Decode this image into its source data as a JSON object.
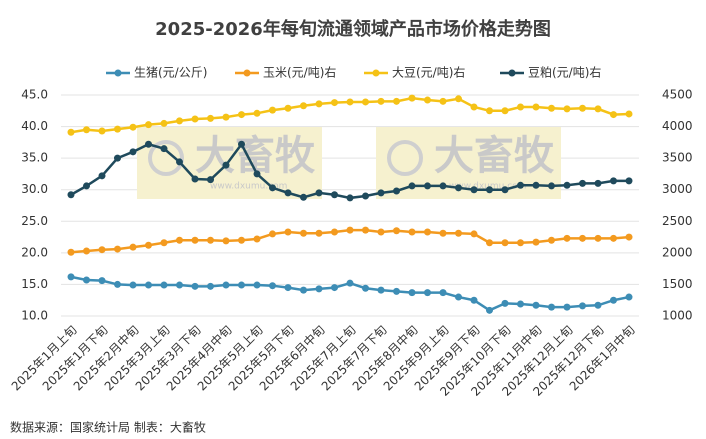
{
  "chart_data": {
    "type": "line",
    "title": "2025-2026年每旬流通领域产品市场价格走势图",
    "source": "数据来源：国家统计局  制表：大畜牧",
    "watermark": "大畜牧",
    "watermark_url": "www.dxumu.com",
    "categories": [
      "2025年1月上旬",
      null,
      "2025年1月下旬",
      null,
      "2025年2月中旬",
      null,
      "2025年3月上旬",
      null,
      "2025年3月下旬",
      null,
      "2025年4月中旬",
      null,
      "2025年5月上旬",
      null,
      "2025年5月下旬",
      null,
      "2025年6月中旬",
      null,
      "2025年7月上旬",
      null,
      "2025年7月下旬",
      null,
      "2025年8月中旬",
      null,
      "2025年9月上旬",
      null,
      "2025年9月下旬",
      null,
      "2025年10月下旬",
      null,
      "2025年11月中旬",
      null,
      "2025年12月上旬",
      null,
      "2025年12月下旬",
      null,
      "2026年1月中旬"
    ],
    "ylim": [
      10,
      45
    ],
    "yticks": [
      {
        "value": 10,
        "label": "10.0"
      },
      {
        "value": 15,
        "label": "15.0"
      },
      {
        "value": 20,
        "label": "20.0"
      },
      {
        "value": 25,
        "label": "25.0"
      },
      {
        "value": 30,
        "label": "30.0"
      },
      {
        "value": 35,
        "label": "35.0"
      },
      {
        "value": 40,
        "label": "40.0"
      },
      {
        "value": 45,
        "label": "45.0"
      }
    ],
    "y2lim": [
      1000,
      4500
    ],
    "y2ticks": [
      1000,
      1500,
      2000,
      2500,
      3000,
      3500,
      4000,
      4500
    ],
    "grid": true,
    "legend": "top",
    "series": [
      {
        "name": "生猪(元/公斤)",
        "color": "#3d8db5",
        "values": [
          16.2,
          15.7,
          15.6,
          15.0,
          14.9,
          14.9,
          14.9,
          14.9,
          14.7,
          14.7,
          14.9,
          14.9,
          14.9,
          14.8,
          14.5,
          14.1,
          14.3,
          14.5,
          15.2,
          14.4,
          14.1,
          13.9,
          13.7,
          13.7,
          13.7,
          13.0,
          12.5,
          10.9,
          12.0,
          11.9,
          11.7,
          11.4,
          11.4,
          11.6,
          11.7,
          12.5,
          13.0
        ]
      },
      {
        "name": "玉米(元/吨)右",
        "color": "#f39a1f",
        "axis": "y2",
        "values": [
          2010,
          2030,
          2050,
          2060,
          2090,
          2120,
          2160,
          2200,
          2200,
          2200,
          2190,
          2200,
          2220,
          2300,
          2330,
          2310,
          2310,
          2330,
          2360,
          2360,
          2330,
          2350,
          2330,
          2330,
          2310,
          2310,
          2300,
          2160,
          2160,
          2160,
          2170,
          2200,
          2230,
          2230,
          2230,
          2230,
          2250
        ]
      },
      {
        "name": "大豆(元/吨)右",
        "color": "#f5c216",
        "axis": "y2",
        "values": [
          3910,
          3950,
          3930,
          3960,
          3990,
          4030,
          4050,
          4090,
          4120,
          4130,
          4150,
          4190,
          4210,
          4260,
          4290,
          4330,
          4360,
          4380,
          4390,
          4390,
          4400,
          4400,
          4450,
          4420,
          4400,
          4440,
          4310,
          4250,
          4250,
          4310,
          4310,
          4290,
          4280,
          4290,
          4280,
          4190,
          4200
        ]
      },
      {
        "name": "豆粕(元/吨)右",
        "color": "#1f4a5c",
        "axis": "y2",
        "values": [
          2920,
          3060,
          3220,
          3500,
          3600,
          3720,
          3650,
          3440,
          3170,
          3160,
          3390,
          3720,
          3250,
          3030,
          2950,
          2880,
          2950,
          2920,
          2870,
          2900,
          2950,
          2980,
          3060,
          3060,
          3060,
          3030,
          3000,
          3000,
          3000,
          3070,
          3070,
          3060,
          3070,
          3100,
          3100,
          3140,
          3140
        ]
      }
    ]
  }
}
